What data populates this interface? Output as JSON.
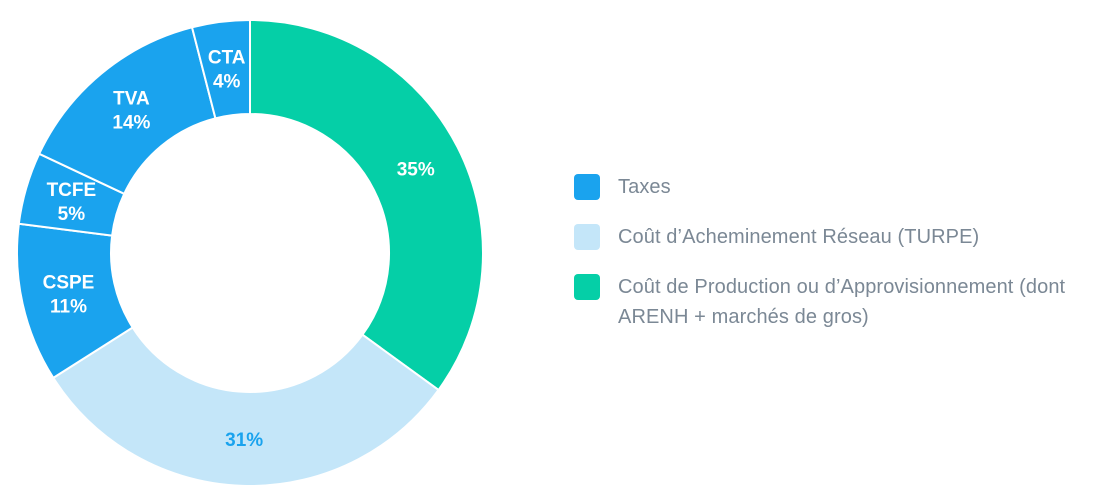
{
  "chart_data": {
    "type": "donut",
    "slices": [
      {
        "label": "",
        "value": 35,
        "value_label": "35%",
        "category": "cost_production"
      },
      {
        "label": "",
        "value": 31,
        "value_label": "31%",
        "category": "turpe"
      },
      {
        "label": "CSPE",
        "value": 11,
        "value_label": "11%",
        "category": "taxes"
      },
      {
        "label": "TCFE",
        "value": 5,
        "value_label": "5%",
        "category": "taxes"
      },
      {
        "label": "TVA",
        "value": 14,
        "value_label": "14%",
        "category": "taxes"
      },
      {
        "label": "CTA",
        "value": 4,
        "value_label": "4%",
        "category": "taxes"
      }
    ],
    "legend": [
      {
        "category": "taxes",
        "text": "Taxes",
        "color": "#1aa3ee"
      },
      {
        "category": "turpe",
        "text": "Coût d’Acheminement Réseau (TURPE)",
        "color": "#c4e6f9"
      },
      {
        "category": "cost_production",
        "text": "Coût de Production ou d’Approvisionnement (dont ARENH + marchés de gros)",
        "color": "#05cfa7"
      }
    ],
    "label_colors": {
      "taxes": "#ffffff",
      "turpe": "#1aa3ee",
      "cost_production": "#ffffff"
    },
    "separator_color": "#ffffff"
  }
}
